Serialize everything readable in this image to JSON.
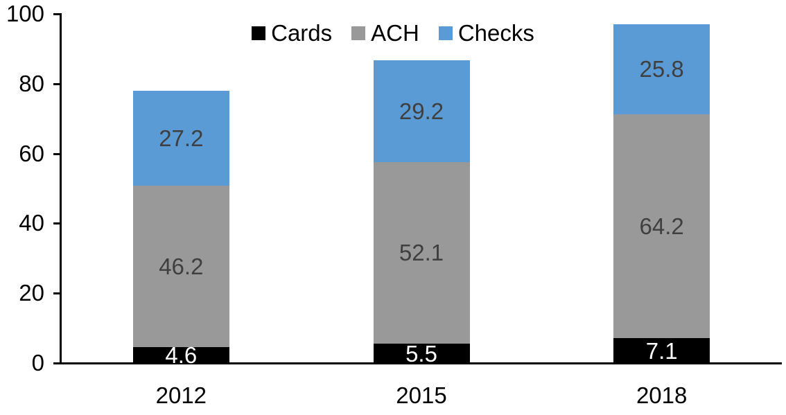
{
  "chart_data": {
    "type": "bar",
    "stacked": true,
    "title": "",
    "xlabel": "",
    "ylabel": "",
    "categories": [
      "2012",
      "2015",
      "2018"
    ],
    "series": [
      {
        "name": "Cards",
        "color": "#000000",
        "label_color": "#ffffff",
        "values": [
          4.6,
          5.5,
          7.1
        ]
      },
      {
        "name": "ACH",
        "color": "#999999",
        "label_color": "#3f3f3f",
        "values": [
          46.2,
          52.1,
          64.2
        ]
      },
      {
        "name": "Checks",
        "color": "#5b9bd5",
        "label_color": "#3f3f3f",
        "values": [
          27.2,
          29.2,
          25.8
        ]
      }
    ],
    "totals": [
      78.0,
      86.8,
      97.1
    ],
    "ylim": [
      0,
      100
    ],
    "yticks": [
      0,
      20,
      40,
      60,
      80,
      100
    ],
    "grid": false,
    "legend_position": "top-center",
    "axis_color": "#000000",
    "background_color": "#ffffff"
  }
}
